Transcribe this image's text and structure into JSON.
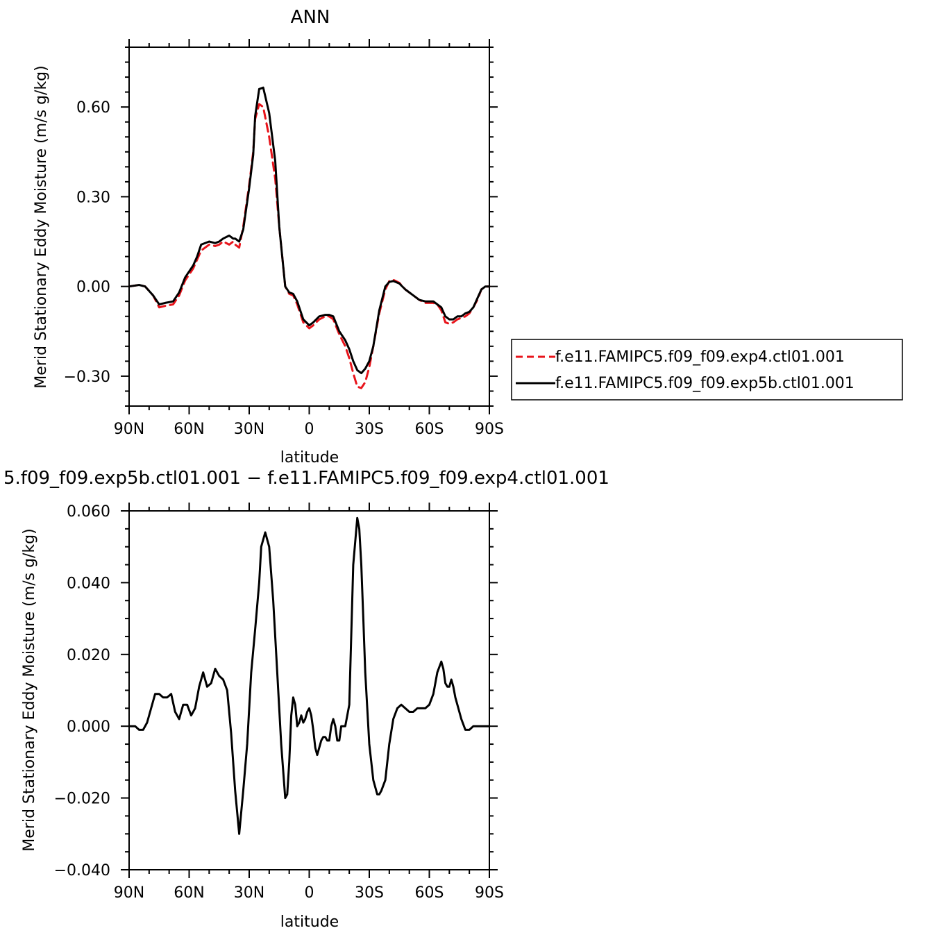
{
  "chart_data": [
    {
      "type": "line",
      "title": "ANN",
      "xlabel": "latitude",
      "ylabel": "Merid Stationary Eddy Moisture (m/s g/kg)",
      "x_unit": "degrees latitude (90 = 90N, -90 = 90S)",
      "xlim": [
        90,
        -90
      ],
      "ylim": [
        -0.4,
        0.8
      ],
      "xticks": [
        90,
        60,
        30,
        0,
        -30,
        -60,
        -90
      ],
      "xtick_labels": [
        "90N",
        "60N",
        "30N",
        "0",
        "30S",
        "60S",
        "90S"
      ],
      "yticks": [
        -0.3,
        0.0,
        0.3,
        0.6
      ],
      "ytick_labels": [
        "−0.30",
        "0.00",
        "0.30",
        "0.60"
      ],
      "grid": false,
      "legend_position": "right, outside",
      "series": [
        {
          "name": "f.e11.FAMIPC5.f09_f09.exp4.ctl01.001",
          "color": "#e8141b",
          "dash": "dashed",
          "x": [
            90,
            85,
            82,
            78,
            75,
            72,
            68,
            65,
            62,
            58,
            56,
            54,
            50,
            47,
            45,
            43,
            40,
            38,
            37,
            35,
            33,
            30,
            28,
            27,
            25,
            23,
            20,
            17,
            15,
            12,
            10,
            8,
            6,
            3,
            0,
            -2,
            -5,
            -8,
            -10,
            -12,
            -15,
            -18,
            -20,
            -22,
            -24,
            -26,
            -28,
            -30,
            -32,
            -35,
            -38,
            -40,
            -42,
            -45,
            -48,
            -52,
            -55,
            -58,
            -60,
            -62,
            -64,
            -66,
            -68,
            -70,
            -72,
            -74,
            -76,
            -78,
            -80,
            -82,
            -84,
            -86,
            -88,
            -90
          ],
          "y": [
            0.0,
            0.005,
            0.0,
            -0.03,
            -0.07,
            -0.065,
            -0.06,
            -0.03,
            0.02,
            0.06,
            0.09,
            0.12,
            0.14,
            0.135,
            0.14,
            0.15,
            0.14,
            0.15,
            0.14,
            0.13,
            0.2,
            0.34,
            0.45,
            0.56,
            0.61,
            0.6,
            0.5,
            0.36,
            0.2,
            0.0,
            -0.025,
            -0.03,
            -0.06,
            -0.12,
            -0.14,
            -0.13,
            -0.11,
            -0.1,
            -0.1,
            -0.11,
            -0.16,
            -0.2,
            -0.24,
            -0.29,
            -0.335,
            -0.34,
            -0.32,
            -0.27,
            -0.2,
            -0.09,
            -0.01,
            0.018,
            0.022,
            0.012,
            -0.01,
            -0.03,
            -0.045,
            -0.055,
            -0.055,
            -0.055,
            -0.06,
            -0.08,
            -0.12,
            -0.125,
            -0.12,
            -0.11,
            -0.105,
            -0.1,
            -0.09,
            -0.07,
            -0.045,
            -0.01,
            0.0,
            0.0
          ]
        },
        {
          "name": "f.e11.FAMIPC5.f09_f09.exp5b.ctl01.001",
          "color": "#000000",
          "dash": "solid",
          "x": [
            90,
            85,
            82,
            78,
            75,
            72,
            68,
            65,
            62,
            58,
            56,
            54,
            50,
            47,
            45,
            43,
            40,
            38,
            37,
            35,
            33,
            30,
            28,
            27,
            25,
            23,
            20,
            17,
            15,
            12,
            10,
            8,
            6,
            3,
            0,
            -2,
            -5,
            -8,
            -10,
            -12,
            -15,
            -18,
            -20,
            -22,
            -24,
            -26,
            -28,
            -30,
            -32,
            -35,
            -38,
            -40,
            -42,
            -45,
            -48,
            -52,
            -55,
            -58,
            -60,
            -62,
            -64,
            -66,
            -68,
            -70,
            -72,
            -74,
            -76,
            -78,
            -80,
            -82,
            -84,
            -86,
            -88,
            -90
          ],
          "y": [
            0.0,
            0.005,
            0.0,
            -0.03,
            -0.06,
            -0.055,
            -0.05,
            -0.02,
            0.03,
            0.07,
            0.1,
            0.14,
            0.15,
            0.145,
            0.15,
            0.16,
            0.17,
            0.16,
            0.16,
            0.15,
            0.19,
            0.33,
            0.44,
            0.57,
            0.66,
            0.665,
            0.58,
            0.42,
            0.2,
            0.0,
            -0.02,
            -0.025,
            -0.05,
            -0.11,
            -0.13,
            -0.12,
            -0.1,
            -0.095,
            -0.095,
            -0.1,
            -0.15,
            -0.18,
            -0.21,
            -0.25,
            -0.28,
            -0.29,
            -0.275,
            -0.25,
            -0.2,
            -0.08,
            0.0,
            0.015,
            0.018,
            0.01,
            -0.01,
            -0.03,
            -0.045,
            -0.05,
            -0.05,
            -0.05,
            -0.06,
            -0.07,
            -0.1,
            -0.11,
            -0.11,
            -0.1,
            -0.1,
            -0.09,
            -0.085,
            -0.07,
            -0.04,
            -0.01,
            0.0,
            0.0
          ]
        }
      ]
    },
    {
      "type": "line",
      "title": "5.f09_f09.exp5b.ctl01.001 − f.e11.FAMIPC5.f09_f09.exp4.ctl01.001",
      "xlabel": "latitude",
      "ylabel": "Merid Stationary Eddy Moisture (m/s g/kg)",
      "x_unit": "degrees latitude (90 = 90N, -90 = 90S)",
      "xlim": [
        90,
        -90
      ],
      "ylim": [
        -0.04,
        0.06
      ],
      "xticks": [
        90,
        60,
        30,
        0,
        -30,
        -60,
        -90
      ],
      "xtick_labels": [
        "90N",
        "60N",
        "30N",
        "0",
        "30S",
        "60S",
        "90S"
      ],
      "yticks": [
        -0.04,
        -0.02,
        0.0,
        0.02,
        0.04,
        0.06
      ],
      "ytick_labels": [
        "−0.040",
        "−0.020",
        "0.000",
        "0.020",
        "0.040",
        "0.060"
      ],
      "grid": false,
      "series": [
        {
          "color": "#000000",
          "dash": "solid",
          "x": [
            90,
            87,
            85,
            83,
            81,
            79,
            77,
            75,
            73,
            71,
            69,
            67,
            65,
            63,
            61,
            59,
            57,
            55,
            53,
            51,
            49,
            47,
            45,
            43,
            41,
            39,
            37,
            35,
            33,
            31,
            29,
            27,
            25,
            24,
            22,
            20,
            18,
            16,
            14,
            12,
            11,
            10,
            9,
            8,
            7,
            6,
            5,
            4,
            3,
            2,
            1,
            0,
            -1,
            -2,
            -3,
            -4,
            -5,
            -6,
            -7,
            -8,
            -9,
            -10,
            -11,
            -12,
            -13,
            -14,
            -15,
            -16,
            -18,
            -20,
            -22,
            -24,
            -25,
            -26,
            -27,
            -28,
            -30,
            -32,
            -34,
            -35,
            -36,
            -38,
            -40,
            -42,
            -44,
            -46,
            -48,
            -50,
            -52,
            -54,
            -56,
            -58,
            -60,
            -62,
            -64,
            -66,
            -67,
            -68,
            -69,
            -70,
            -71,
            -72,
            -73,
            -74,
            -76,
            -78,
            -80,
            -82,
            -84,
            -86,
            -88,
            -90
          ],
          "y": [
            0.0,
            0.0,
            -0.001,
            -0.001,
            0.001,
            0.005,
            0.009,
            0.009,
            0.008,
            0.008,
            0.009,
            0.004,
            0.002,
            0.006,
            0.006,
            0.003,
            0.005,
            0.011,
            0.015,
            0.011,
            0.012,
            0.016,
            0.014,
            0.013,
            0.01,
            -0.002,
            -0.018,
            -0.03,
            -0.018,
            -0.005,
            0.015,
            0.027,
            0.04,
            0.05,
            0.054,
            0.05,
            0.035,
            0.015,
            -0.005,
            -0.02,
            -0.019,
            -0.01,
            0.003,
            0.008,
            0.006,
            0.0,
            0.001,
            0.003,
            0.001,
            0.002,
            0.004,
            0.005,
            0.003,
            -0.001,
            -0.006,
            -0.008,
            -0.006,
            -0.004,
            -0.003,
            -0.003,
            -0.004,
            -0.004,
            0.0,
            0.002,
            0.0,
            -0.004,
            -0.004,
            0.0,
            0.0,
            0.006,
            0.045,
            0.058,
            0.055,
            0.045,
            0.03,
            0.015,
            -0.005,
            -0.015,
            -0.019,
            -0.019,
            -0.018,
            -0.015,
            -0.005,
            0.002,
            0.005,
            0.006,
            0.005,
            0.004,
            0.004,
            0.005,
            0.005,
            0.005,
            0.006,
            0.009,
            0.015,
            0.018,
            0.016,
            0.012,
            0.011,
            0.011,
            0.013,
            0.011,
            0.008,
            0.006,
            0.002,
            -0.001,
            -0.001,
            0.0,
            0.0,
            0.0,
            0.0,
            0.0
          ]
        }
      ]
    }
  ]
}
